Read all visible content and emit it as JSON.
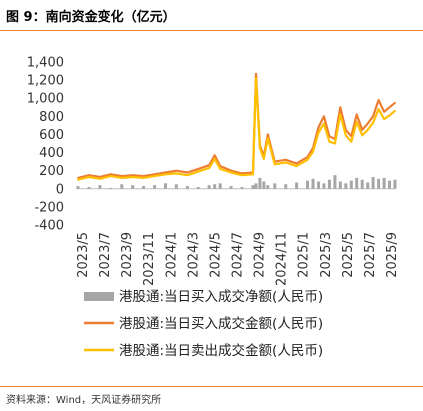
{
  "title": "图 9：南向资金变化（亿元）",
  "source": "资料来源：Wind，天风证券研究所",
  "colors": {
    "accent_rule": "#E8822B",
    "net": "#A6A6A6",
    "buy": "#ED7D31",
    "sell": "#FFC000"
  },
  "chart_data": {
    "type": "line",
    "title": "南向资金变化（亿元）",
    "xlabel": "",
    "ylabel": "",
    "ylim": [
      -400,
      1400
    ],
    "yticks": [
      "1,400",
      "1,200",
      "1,000",
      "800",
      "600",
      "400",
      "200",
      "0",
      "-200",
      "-400"
    ],
    "ytick_values": [
      1400,
      1200,
      1000,
      800,
      600,
      400,
      200,
      0,
      -200,
      -400
    ],
    "x_ticks": [
      "2023/5",
      "2023/7",
      "2023/9",
      "2023/11",
      "2024/1",
      "2024/3",
      "2024/5",
      "2024/7",
      "2024/9",
      "2024/11",
      "2025/1",
      "2025/3",
      "2025/5",
      "2025/7",
      "2025/9"
    ],
    "x_range": [
      2023.333,
      2025.75
    ],
    "grid": false,
    "legend_position": "bottom",
    "x": [
      2023.333,
      2023.417,
      2023.5,
      2023.583,
      2023.667,
      2023.75,
      2023.833,
      2023.917,
      2024.0,
      2024.083,
      2024.167,
      2024.25,
      2024.333,
      2024.375,
      2024.417,
      2024.5,
      2024.583,
      2024.667,
      2024.69,
      2024.72,
      2024.75,
      2024.78,
      2024.833,
      2024.917,
      2025.0,
      2025.083,
      2025.125,
      2025.167,
      2025.208,
      2025.25,
      2025.292,
      2025.333,
      2025.375,
      2025.417,
      2025.458,
      2025.5,
      2025.542,
      2025.583,
      2025.625,
      2025.667,
      2025.708,
      2025.75
    ],
    "series": [
      {
        "name": "港股通:当日买入成交净额(人民币)",
        "type": "bar",
        "values": [
          30,
          20,
          40,
          10,
          50,
          40,
          30,
          40,
          60,
          50,
          30,
          20,
          40,
          50,
          60,
          30,
          20,
          40,
          60,
          120,
          80,
          40,
          60,
          50,
          70,
          90,
          110,
          80,
          60,
          100,
          150,
          80,
          60,
          90,
          120,
          100,
          70,
          130,
          110,
          120,
          90,
          100
        ]
      },
      {
        "name": "港股通:当日买入成交金额(人民币)",
        "type": "line",
        "values": [
          120,
          150,
          130,
          160,
          140,
          150,
          140,
          160,
          180,
          200,
          180,
          220,
          260,
          370,
          250,
          200,
          170,
          180,
          1270,
          480,
          360,
          600,
          300,
          320,
          280,
          350,
          450,
          680,
          800,
          580,
          550,
          900,
          650,
          580,
          820,
          650,
          720,
          800,
          980,
          850,
          900,
          950
        ]
      },
      {
        "name": "港股通:当日卖出成交金额(人民币)",
        "type": "line",
        "values": [
          100,
          130,
          110,
          140,
          120,
          130,
          120,
          140,
          160,
          170,
          150,
          190,
          230,
          330,
          220,
          180,
          150,
          160,
          1220,
          450,
          330,
          560,
          270,
          290,
          250,
          320,
          410,
          620,
          720,
          520,
          500,
          820,
          590,
          520,
          740,
          590,
          650,
          730,
          880,
          770,
          810,
          860
        ]
      }
    ]
  }
}
